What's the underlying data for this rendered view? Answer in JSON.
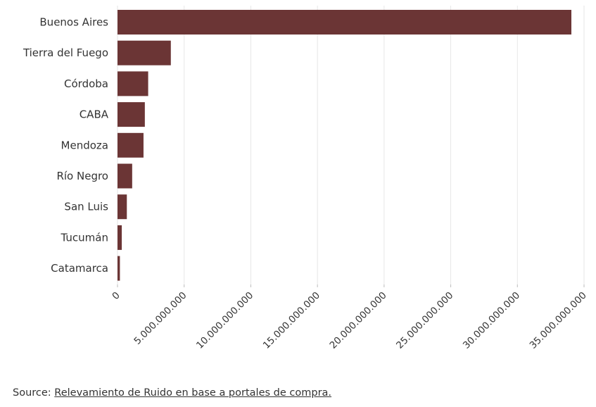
{
  "chart_data": {
    "type": "bar",
    "orientation": "horizontal",
    "categories": [
      "Buenos Aires",
      "Tierra del Fuego",
      "Córdoba",
      "CABA",
      "Mendoza",
      "Río Negro",
      "San Luis",
      "Tucumán",
      "Catamarca"
    ],
    "values": [
      34050000000,
      4000000000,
      2300000000,
      2050000000,
      1950000000,
      1100000000,
      700000000,
      320000000,
      180000000
    ],
    "x_ticks": [
      "0",
      "5.000.000.000",
      "10.000.000.000",
      "15.000.000.000",
      "20.000.000.000",
      "25.000.000.000",
      "30.000.000.000",
      "35.000.000.000"
    ],
    "xlim": [
      0,
      35000000000
    ],
    "grid": true,
    "bar_color": "#6b3535",
    "title": "",
    "xlabel": "",
    "ylabel": ""
  },
  "source": {
    "prefix": "Source: ",
    "link_text": "Relevamiento de Ruido en base a portales de compra."
  }
}
